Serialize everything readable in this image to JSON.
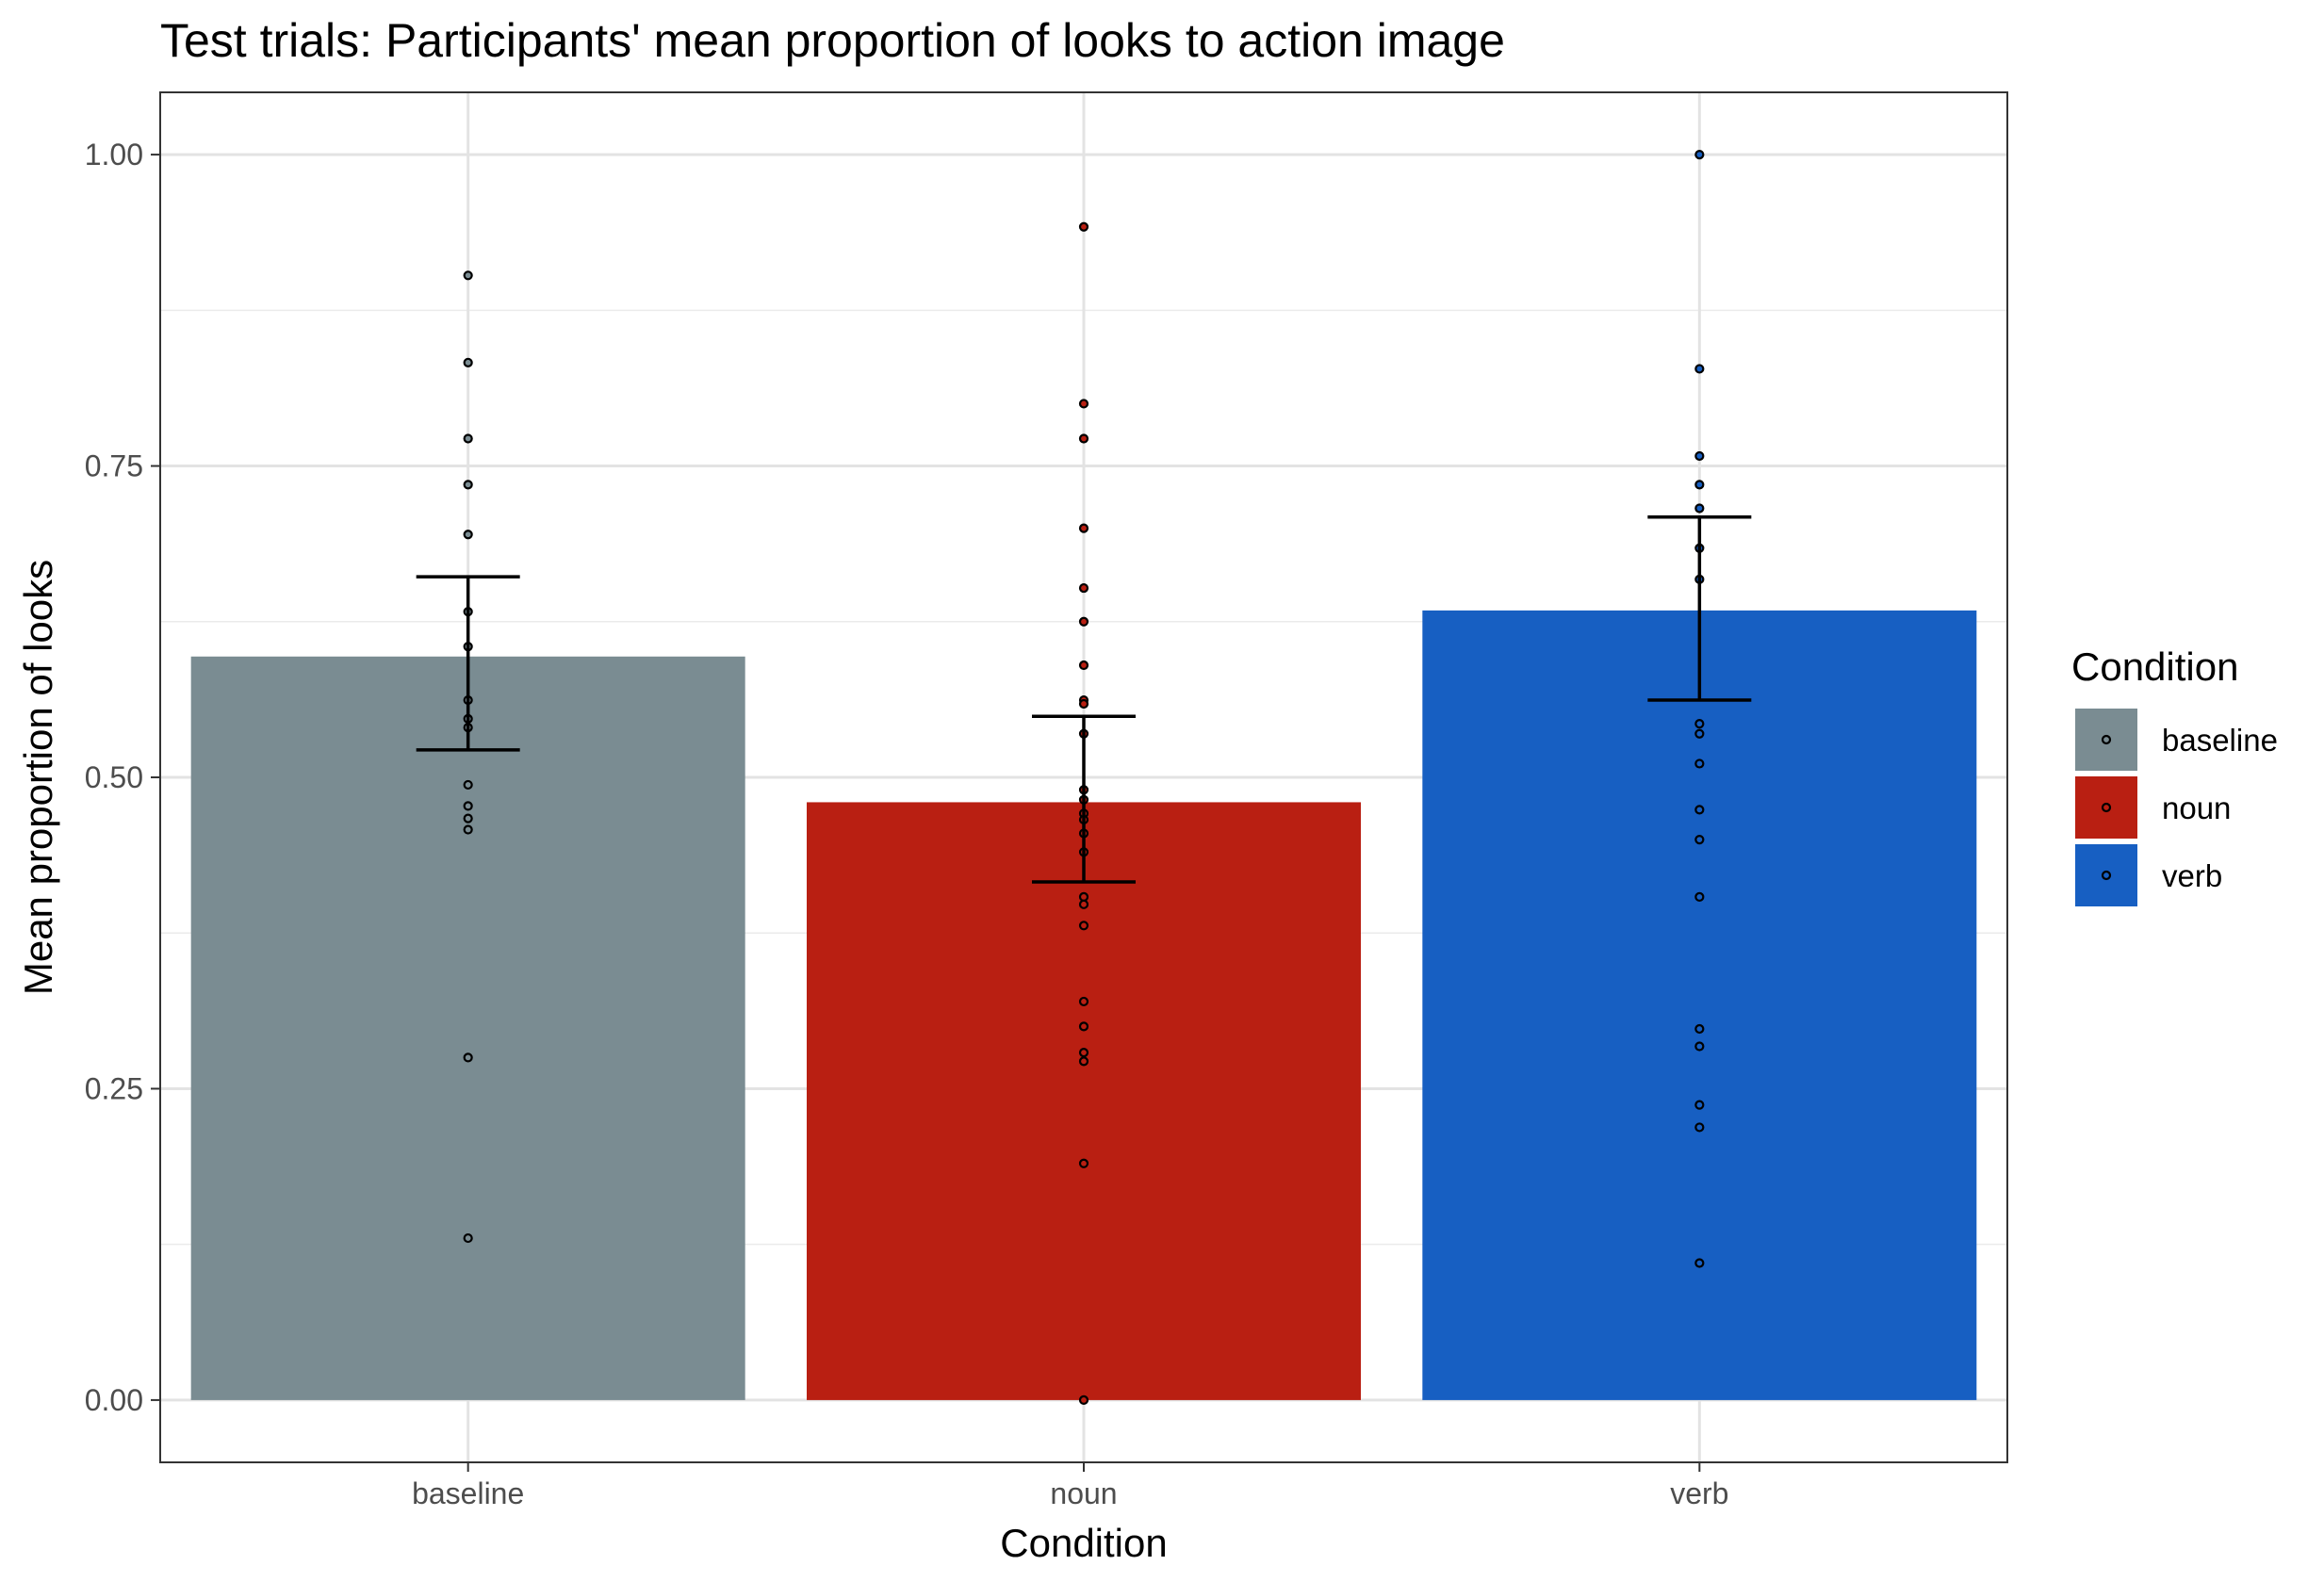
{
  "chart_data": {
    "type": "bar",
    "title": "Test trials: Participants' mean proportion of looks to action image",
    "xlabel": "Condition",
    "ylabel": "Mean proportion of looks",
    "categories": [
      "baseline",
      "noun",
      "verb"
    ],
    "values": [
      0.597,
      0.48,
      0.634
    ],
    "error_bars": [
      {
        "lower": 0.522,
        "upper": 0.661
      },
      {
        "lower": 0.416,
        "upper": 0.549
      },
      {
        "lower": 0.562,
        "upper": 0.709
      }
    ],
    "points": [
      [
        0.903,
        0.833,
        0.772,
        0.735,
        0.695,
        0.633,
        0.605,
        0.562,
        0.547,
        0.54,
        0.494,
        0.477,
        0.467,
        0.458,
        0.275,
        0.13
      ],
      [
        0.942,
        0.8,
        0.772,
        0.7,
        0.652,
        0.625,
        0.59,
        0.562,
        0.559,
        0.535,
        0.49,
        0.482,
        0.471,
        0.466,
        0.455,
        0.44,
        0.404,
        0.398,
        0.381,
        0.32,
        0.3,
        0.279,
        0.272,
        0.19,
        0.0
      ],
      [
        1.0,
        0.828,
        0.758,
        0.735,
        0.716,
        0.684,
        0.659,
        0.543,
        0.535,
        0.511,
        0.474,
        0.45,
        0.404,
        0.298,
        0.284,
        0.237,
        0.219,
        0.11
      ]
    ],
    "ylim": [
      -0.05,
      1.05
    ],
    "yticks": [
      0.0,
      0.25,
      0.5,
      0.75,
      1.0
    ],
    "ytick_labels": [
      "0.00",
      "0.25",
      "0.50",
      "0.75",
      "1.00"
    ],
    "grid": true,
    "colors": {
      "baseline": "#7a8c92",
      "noun": "#b91f12",
      "verb": "#175fc2"
    },
    "legend": {
      "title": "Condition",
      "position": "right",
      "entries": [
        "baseline",
        "noun",
        "verb"
      ]
    }
  }
}
